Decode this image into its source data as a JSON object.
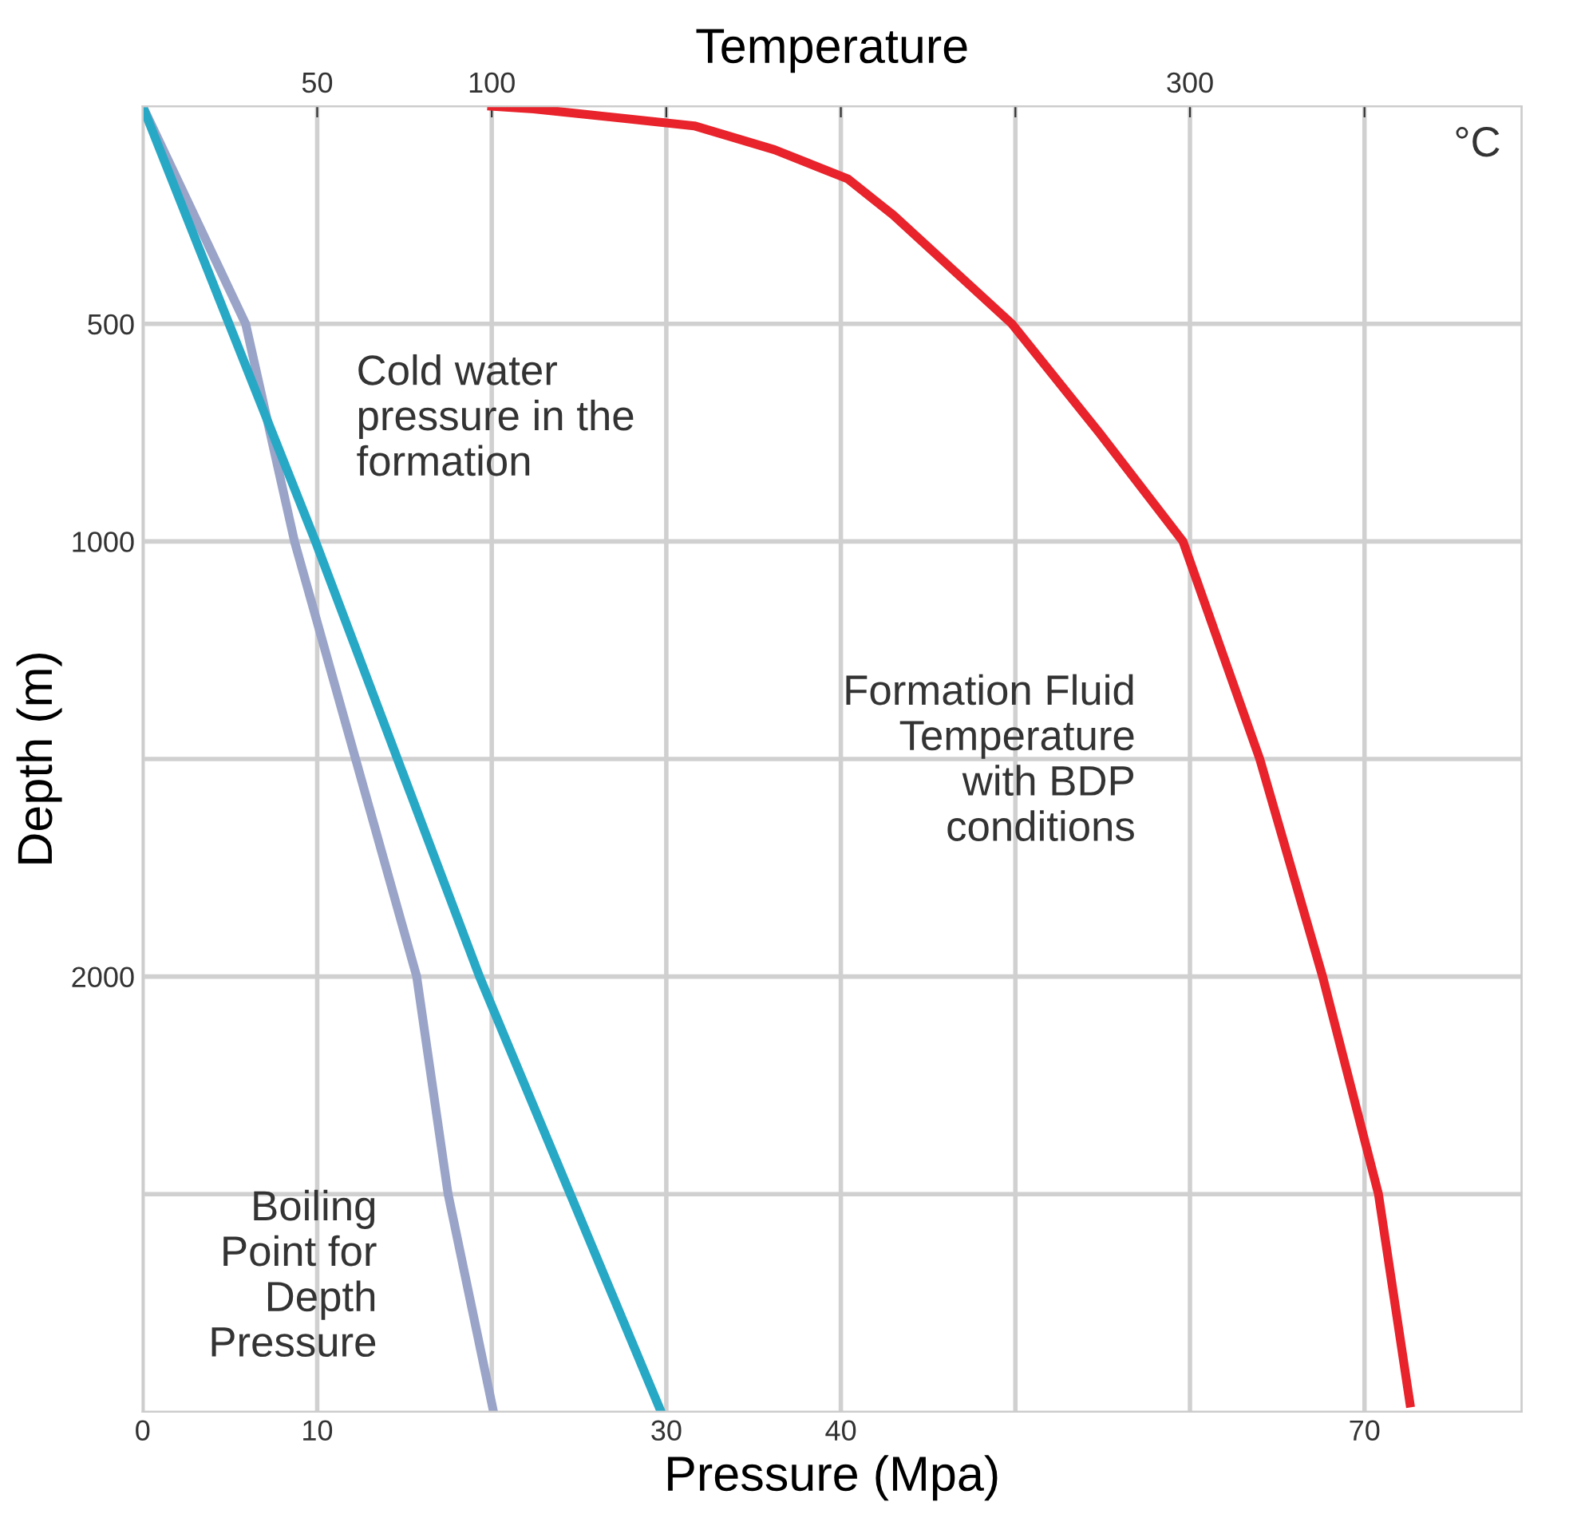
{
  "chart_data": {
    "type": "line",
    "xlabel": "Pressure (Mpa)",
    "ylabel": "Depth (m)",
    "x2label": "Temperature",
    "xlim": [
      0,
      79
    ],
    "ylim": [
      3000,
      0
    ],
    "x2lim": [
      0,
      395
    ],
    "xticks": [
      0,
      10,
      {
        "value": 20,
        "label": null
      },
      30,
      40,
      {
        "value": 50,
        "label": null
      },
      {
        "value": 60,
        "label": null
      },
      70
    ],
    "yticks": [
      500,
      1000,
      {
        "value": 1500,
        "label": null
      },
      2000,
      {
        "value": 2500,
        "label": null
      }
    ],
    "x2ticks": [
      50,
      100,
      {
        "value": 150,
        "label": null
      },
      {
        "value": 200,
        "label": null
      },
      {
        "value": 250,
        "label": null
      },
      300,
      {
        "value": 350,
        "label": null
      }
    ],
    "grid": true,
    "marker": "none",
    "line_style": "solid",
    "series": [
      {
        "color": "#9aa4c8",
        "x": [
          0,
          5.9,
          8.7,
          15.7,
          17.5,
          20.1
        ],
        "values": [
          0,
          500,
          1000,
          2000,
          2500,
          3000
        ]
      },
      {
        "color": "#27a9c6",
        "x": [
          0,
          9.9,
          19.3,
          29.7
        ],
        "values": [
          0,
          1000,
          2000,
          3000
        ]
      },
      {
        "color": "#e8232b",
        "axis": "x2",
        "x": [
          100,
          112,
          158,
          181,
          202,
          215,
          249,
          274,
          298,
          320,
          338,
          354,
          363
        ],
        "values": [
          0,
          6,
          45,
          100,
          167,
          250,
          500,
          750,
          1000,
          1500,
          2000,
          2500,
          2980
        ]
      }
    ],
    "annotations": [
      "Cold water\npressure in the\nformation",
      "Formation Fluid\nTemperature\nwith BDP\nconditions",
      "Boiling\nPoint for\nDepth\nPressure",
      "°C"
    ]
  }
}
